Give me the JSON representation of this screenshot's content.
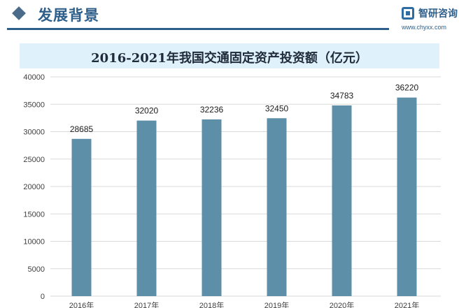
{
  "header": {
    "title": "发展背景"
  },
  "logo": {
    "name": "智研咨询",
    "url": "www.chyxx.com"
  },
  "colors": {
    "bar": "#5e8fa8",
    "title_band": "#dff1fa",
    "header_blue": "#2e5f8a"
  },
  "chart_data": {
    "type": "bar",
    "title": "2016-2021年我国交通固定资产投资额（亿元）",
    "categories": [
      "2016年",
      "2017年",
      "2018年",
      "2019年",
      "2020年",
      "2021年"
    ],
    "values": [
      28685,
      32020,
      32236,
      32450,
      34783,
      36220
    ],
    "value_labels": [
      "28685",
      "32020",
      "32236",
      "32450",
      "34783",
      "36220"
    ],
    "ylim": [
      0,
      40000
    ],
    "yticks": [
      "0",
      "5000",
      "10000",
      "15000",
      "20000",
      "25000",
      "30000",
      "35000",
      "40000"
    ],
    "grid": true,
    "legend": "none"
  }
}
